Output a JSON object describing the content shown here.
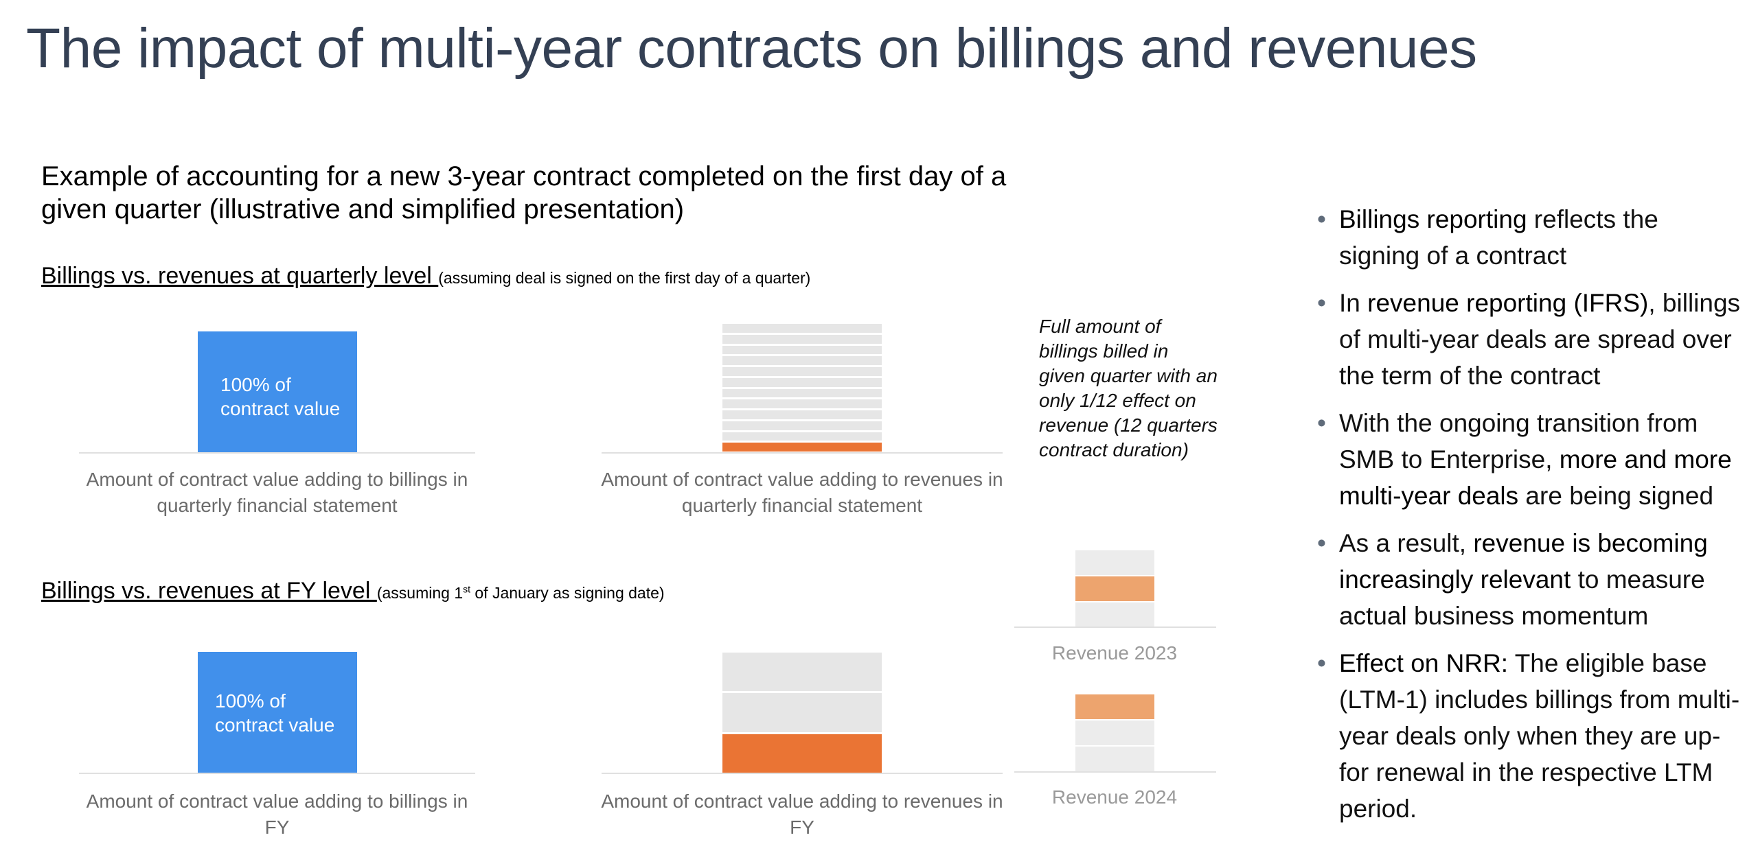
{
  "title": "The impact of multi-year contracts on billings and revenues",
  "subtitle": {
    "bold_part": "Example of accounting for a new 3-year contract completed on the first day of a given quarter",
    "light_part": " (illustrative and simplified presentation)"
  },
  "quarterly_section": {
    "heading": "Billings vs. revenues at quarterly level ",
    "note": "(assuming deal is signed on the first day of a quarter)",
    "billings_bar_label_line1": "100% of",
    "billings_bar_label_line2": "contract value",
    "billings_caption": "Amount of contract value adding to billings in quarterly financial statement",
    "revenue_caption": "Amount of contract value adding to revenues in quarterly financial statement",
    "revenue_recognized_fraction": "1/12"
  },
  "fy_section": {
    "heading": "Billings vs. revenues at FY level ",
    "note_pre": "(assuming 1",
    "note_sup": "st",
    "note_post": " of January as signing date)",
    "billings_bar_label_line1": "100% of",
    "billings_bar_label_line2": "contract value",
    "billings_caption": "Amount of contract value adding to billings in FY",
    "revenue_caption": "Amount of contract value adding to revenues in FY",
    "revenue_recognized_fraction": "1/3"
  },
  "callout": "Full amount of billings billed in given quarter with an only 1/12 effect on revenue (12 quarters contract duration)",
  "revenue_years": [
    {
      "label": "Revenue 2023"
    },
    {
      "label": "Revenue 2024"
    }
  ],
  "bullets": [
    {
      "strong": "Billings reporting",
      "rest": " reflects the signing of a contract"
    },
    {
      "pre": "In ",
      "strong": "revenue reporting (IFRS)",
      "rest": ", billings of multi-year deals are spread over the term of the contract"
    },
    {
      "pre": "With the ongoing transition from SMB to Enterprise, ",
      "strong": "more and more multi-year deals",
      "rest": " are being signed"
    },
    {
      "pre": "As a result, ",
      "strong": "revenue is becoming increasingly relevant",
      "rest": " to measure actual business momentum"
    },
    {
      "strong": "Effect on NRR:",
      "rest": " The eligible base (LTM-1) includes billings from multi-year deals only when they are up-for renewal in the respective LTM period."
    }
  ],
  "colors": {
    "title": "#344054",
    "billings_bar": "#4190eb",
    "revenue_orange": "#ea7434",
    "revenue_orange_soft": "#eda46e",
    "stripe_grey": "#e6e6e6"
  }
}
